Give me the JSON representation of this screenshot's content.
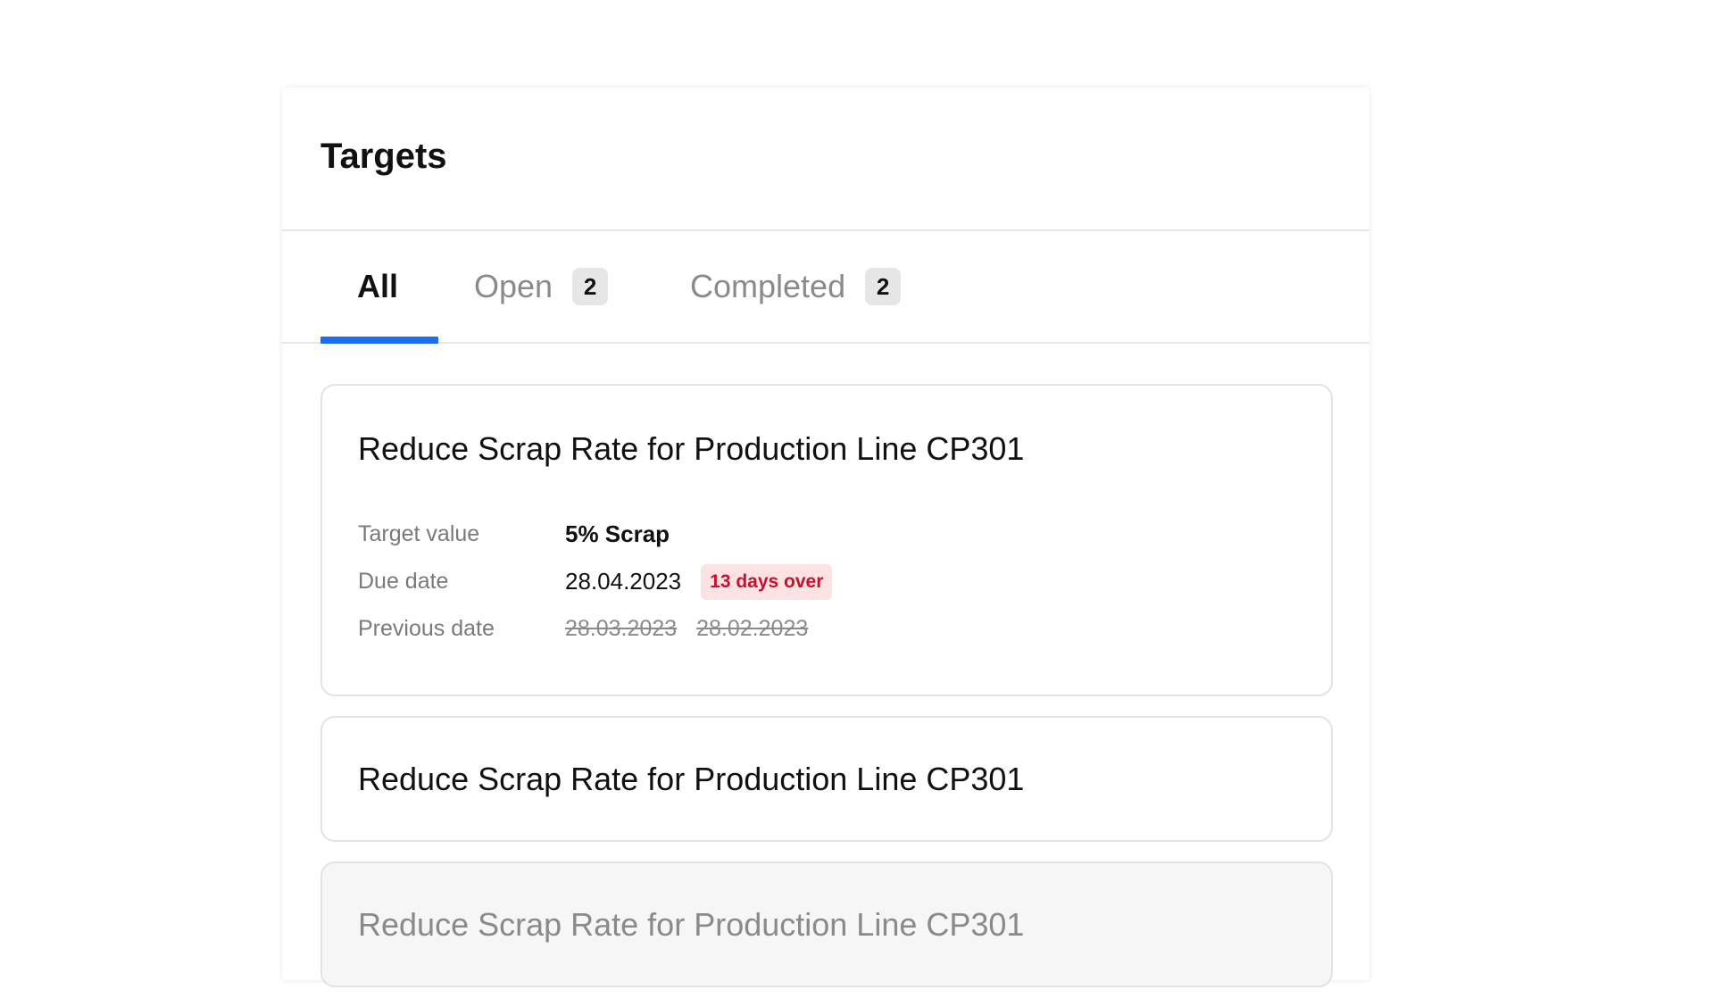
{
  "panel": {
    "title": "Targets"
  },
  "tabs": [
    {
      "label": "All",
      "active": true
    },
    {
      "label": "Open",
      "count": "2"
    },
    {
      "label": "Completed",
      "count": "2"
    }
  ],
  "accent_color": "#1e6cf2",
  "cards": [
    {
      "title": "Reduce Scrap Rate for Production Line CP301",
      "state": "expanded",
      "target_value_label": "Target value",
      "target_value": "5% Scrap",
      "due_date_label": "Due date",
      "due_date": "28.04.2023",
      "overdue_badge": "13 days over",
      "previous_date_label": "Previous date",
      "previous_dates": [
        "28.03.2023",
        "28.02.2023"
      ]
    },
    {
      "title": "Reduce Scrap Rate for Production Line CP301",
      "state": "collapsed"
    },
    {
      "title": "Reduce Scrap Rate for Production Line CP301",
      "state": "completed"
    }
  ]
}
